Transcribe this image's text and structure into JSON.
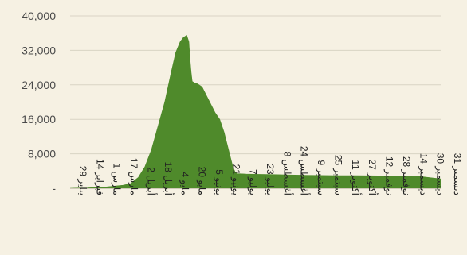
{
  "chart_data": {
    "type": "area",
    "title": "",
    "xlabel": "",
    "ylabel": "",
    "ylim": [
      0,
      40000
    ],
    "y_ticks": [
      {
        "value": 0,
        "label": "-"
      },
      {
        "value": 8000,
        "label": "8,000"
      },
      {
        "value": 16000,
        "label": "16,000"
      },
      {
        "value": 24000,
        "label": "24,000"
      },
      {
        "value": 32000,
        "label": "32,000"
      },
      {
        "value": 40000,
        "label": "40,000"
      }
    ],
    "x_ticks": [
      "29 يناير",
      "14 فبراير",
      "1 مارس",
      "17 مارس",
      "2 أبريل",
      "18 أبريل",
      "4 مايو",
      "20 مايو",
      "5 يونيو",
      "21 يونيو",
      "7 يوليو",
      "23 يوليو",
      "8 أغسطس",
      "24 أغسطس",
      "9 سبتمبر",
      "25 سبتمبر",
      "11 أكتوبر",
      "27 أكتوبر",
      "12 نوفمبر",
      "28 نوفمبر",
      "14 ديسمبر",
      "30 ديسمبر",
      "31 ديسمبر"
    ],
    "grid": true,
    "legend": "none",
    "fill_color": "#4f8a2b",
    "gridline_color": "#d9d4c4",
    "series": [
      {
        "x": [
          0,
          8,
          16,
          24,
          32,
          40,
          48,
          55,
          62,
          68,
          74,
          80,
          86,
          92,
          96,
          100,
          103,
          106,
          108,
          109,
          110,
          111,
          113,
          116,
          120,
          124,
          128,
          132,
          136,
          140,
          144,
          148,
          150,
          152,
          156,
          160,
          170,
          180,
          200,
          220,
          240,
          260,
          280,
          300,
          320,
          330,
          337
        ],
        "values": [
          0,
          50,
          100,
          200,
          300,
          500,
          700,
          1100,
          2500,
          5000,
          9000,
          14500,
          20000,
          27000,
          31500,
          34000,
          35000,
          35500,
          34000,
          30000,
          27000,
          24800,
          24500,
          24200,
          23500,
          21500,
          19500,
          17500,
          16000,
          13000,
          9000,
          5000,
          3800,
          3400,
          3350,
          3300,
          3250,
          3200,
          3100,
          3000,
          2950,
          2950,
          2900,
          2850,
          2700,
          2400,
          2200
        ]
      }
    ]
  }
}
